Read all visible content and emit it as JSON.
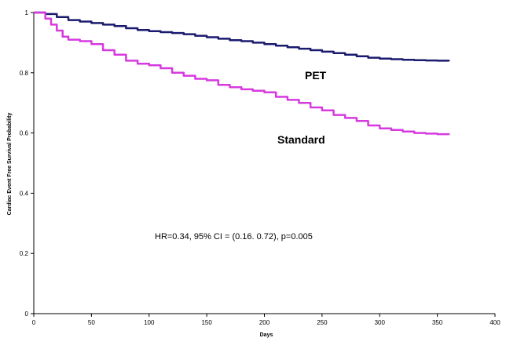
{
  "chart_data": {
    "type": "line",
    "title": "",
    "xlabel": "Days",
    "ylabel": "Cardiac Event Free Survival Probability",
    "xlim": [
      0,
      400
    ],
    "ylim": [
      0,
      1
    ],
    "x_ticks": [
      0,
      50,
      100,
      150,
      200,
      250,
      300,
      350,
      400
    ],
    "y_ticks": [
      0,
      0.2,
      0.4,
      0.6,
      0.8,
      1
    ],
    "x_tick_labels": [
      "0",
      "50",
      "100",
      "150",
      "200",
      "250",
      "300",
      "350",
      "400"
    ],
    "y_tick_labels": [
      "0",
      "0.2",
      "0.4",
      "0.6",
      "0.8",
      "1"
    ],
    "grid": false,
    "legend": "none",
    "series": [
      {
        "name": "PET",
        "color": "#1a1a6e",
        "x": [
          0,
          5,
          10,
          20,
          30,
          40,
          50,
          60,
          70,
          80,
          90,
          100,
          110,
          120,
          130,
          140,
          150,
          160,
          170,
          180,
          190,
          200,
          210,
          220,
          230,
          240,
          250,
          260,
          270,
          280,
          290,
          300,
          310,
          320,
          330,
          340,
          350,
          360
        ],
        "y": [
          1.0,
          1.0,
          0.995,
          0.985,
          0.975,
          0.97,
          0.965,
          0.96,
          0.955,
          0.948,
          0.942,
          0.938,
          0.935,
          0.932,
          0.928,
          0.923,
          0.918,
          0.913,
          0.908,
          0.905,
          0.9,
          0.895,
          0.89,
          0.885,
          0.88,
          0.875,
          0.87,
          0.865,
          0.86,
          0.855,
          0.85,
          0.847,
          0.845,
          0.843,
          0.842,
          0.841,
          0.84,
          0.838
        ]
      },
      {
        "name": "Standard",
        "color": "#d63adf",
        "x": [
          0,
          5,
          10,
          15,
          20,
          25,
          30,
          40,
          50,
          60,
          70,
          80,
          90,
          100,
          110,
          120,
          130,
          140,
          150,
          160,
          170,
          180,
          190,
          200,
          210,
          220,
          230,
          240,
          250,
          260,
          270,
          280,
          290,
          300,
          310,
          320,
          330,
          340,
          350,
          360
        ],
        "y": [
          1.0,
          1.0,
          0.98,
          0.96,
          0.94,
          0.92,
          0.91,
          0.905,
          0.895,
          0.875,
          0.86,
          0.84,
          0.83,
          0.825,
          0.815,
          0.8,
          0.79,
          0.78,
          0.775,
          0.76,
          0.752,
          0.745,
          0.74,
          0.735,
          0.72,
          0.71,
          0.7,
          0.685,
          0.675,
          0.66,
          0.65,
          0.64,
          0.625,
          0.615,
          0.61,
          0.605,
          0.6,
          0.598,
          0.596,
          0.594
        ]
      }
    ],
    "series_labels": {
      "pet": "PET",
      "standard": "Standard"
    },
    "annotation": "HR=0.34, 95% CI = (0.16. 0.72), p=0.005"
  }
}
